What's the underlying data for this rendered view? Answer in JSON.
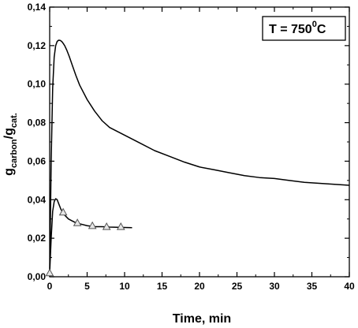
{
  "chart_data": {
    "type": "line",
    "xlabel": "Time, min",
    "ylabel": {
      "base": "g",
      "sub1": "carbon",
      "mid": "/g",
      "sub2": "cat."
    },
    "annotation": {
      "text_main": "T = 750",
      "text_sup": "0",
      "text_unit": "C"
    },
    "xlim": [
      0,
      40
    ],
    "ylim": [
      0.0,
      0.14
    ],
    "x_ticks": [
      0,
      5,
      10,
      15,
      20,
      25,
      30,
      35,
      40
    ],
    "x_tick_labels": [
      "0",
      "5",
      "10",
      "15",
      "20",
      "25",
      "30",
      "35",
      "40"
    ],
    "y_ticks": [
      0.0,
      0.02,
      0.04,
      0.06,
      0.08,
      0.1,
      0.12,
      0.14
    ],
    "y_tick_labels": [
      "0,00",
      "0,02",
      "0,04",
      "0,06",
      "0,08",
      "0,10",
      "0,12",
      "0,14"
    ],
    "grid": false,
    "series": [
      {
        "color": "#000000",
        "marker": "none",
        "x": [
          0.0,
          0.2,
          0.4,
          0.6,
          0.8,
          1.0,
          1.2,
          1.4,
          1.6,
          1.8,
          2.0,
          2.3,
          2.6,
          3.0,
          3.5,
          4.0,
          5.0,
          6.0,
          7.0,
          8.0,
          9.0,
          10.0,
          12.0,
          14.0,
          16.0,
          18.0,
          20.0,
          22.0,
          24.0,
          26.0,
          28.0,
          30.0,
          32.0,
          34.0,
          36.0,
          38.0,
          40.0
        ],
        "y": [
          0.0,
          0.06,
          0.098,
          0.114,
          0.12,
          0.1222,
          0.1228,
          0.1227,
          0.1222,
          0.1212,
          0.12,
          0.1175,
          0.1145,
          0.11,
          0.1045,
          0.0995,
          0.092,
          0.086,
          0.081,
          0.0775,
          0.0755,
          0.0735,
          0.0695,
          0.0655,
          0.0625,
          0.0595,
          0.057,
          0.0555,
          0.054,
          0.0525,
          0.0515,
          0.051,
          0.05,
          0.049,
          0.0485,
          0.048,
          0.0475
        ]
      },
      {
        "color": "#000000",
        "marker": "none",
        "x": [
          0.0,
          0.2,
          0.4,
          0.6,
          0.8,
          1.0,
          1.2,
          1.5,
          2.0,
          2.5,
          3.0,
          3.5,
          4.0,
          5.0,
          6.0,
          7.0,
          8.0,
          9.0,
          10.0,
          11.0
        ],
        "y": [
          0.002,
          0.02,
          0.034,
          0.039,
          0.0405,
          0.04,
          0.038,
          0.035,
          0.032,
          0.03,
          0.029,
          0.028,
          0.0275,
          0.0265,
          0.026,
          0.026,
          0.0258,
          0.0257,
          0.0256,
          0.0255
        ]
      },
      {
        "color": "#000000",
        "marker": "triangle",
        "x": [
          0.0,
          1.8,
          3.7,
          5.7,
          7.6,
          9.5
        ],
        "y": [
          0.002,
          0.0335,
          0.028,
          0.0265,
          0.026,
          0.026
        ]
      }
    ]
  }
}
